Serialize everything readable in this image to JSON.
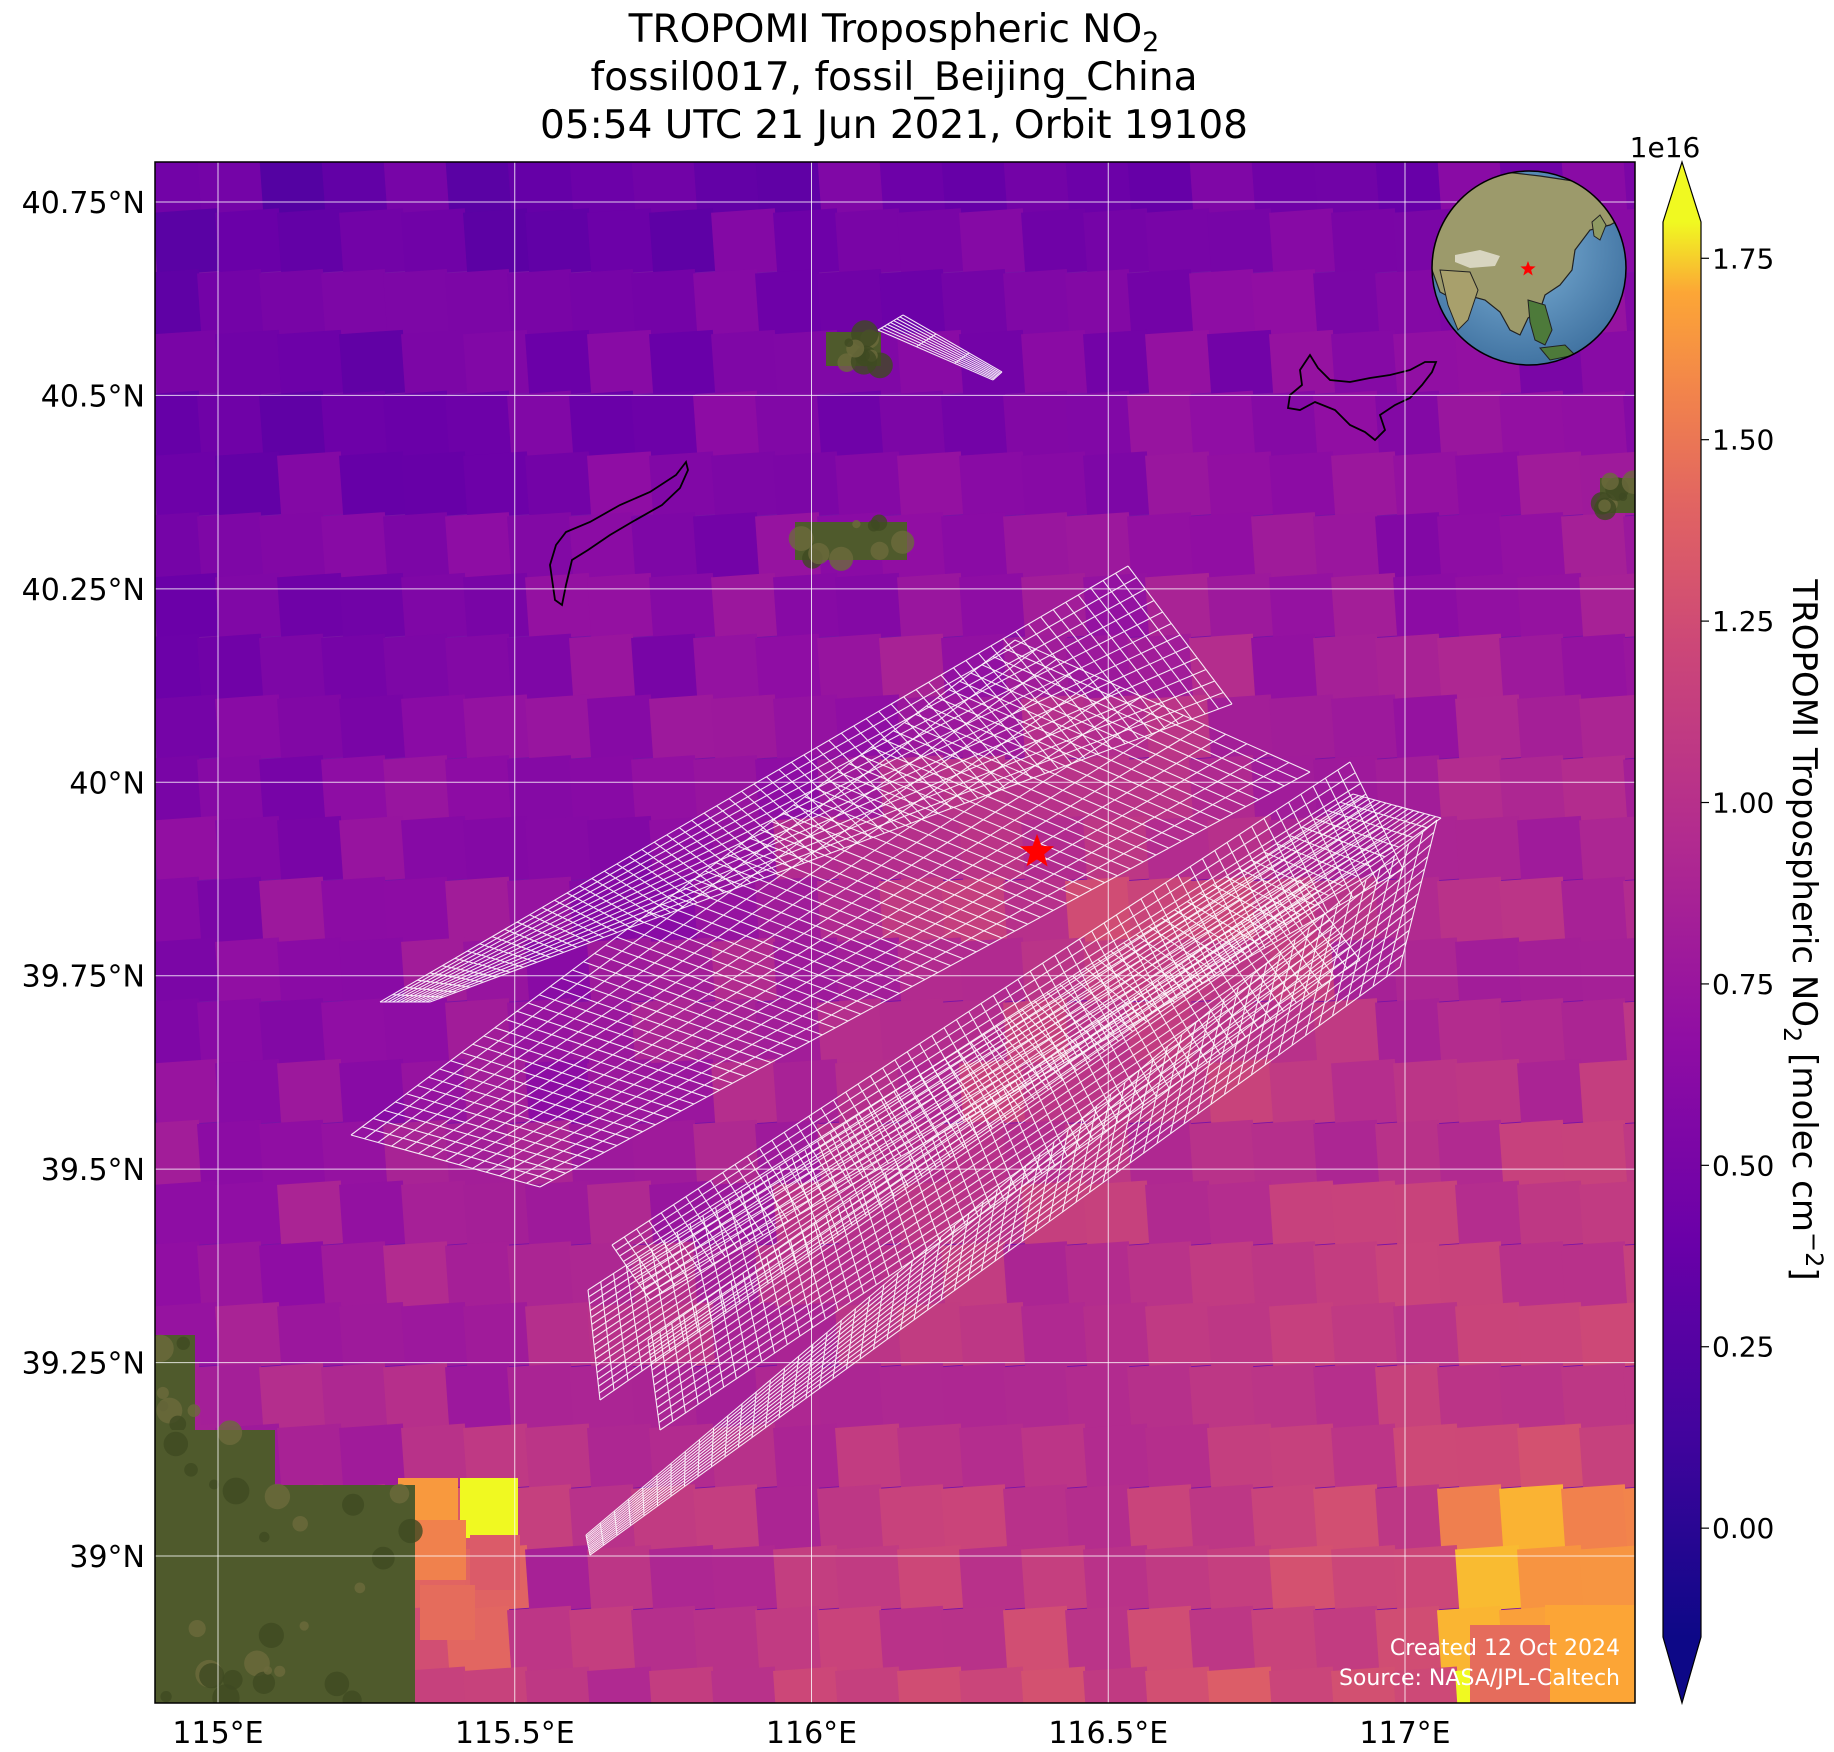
{
  "figure": {
    "title": {
      "line1_prefix": "TROPOMI Tropospheric NO",
      "line1_subscript": "2",
      "line2": "fossil0017, fossil_Beijing_China",
      "line3": "05:54 UTC 21 Jun 2021, Orbit 19108"
    },
    "map": {
      "lon_range": [
        114.9,
        117.4
      ],
      "lat_range": [
        38.8,
        40.8
      ],
      "lon_ticks": [
        {
          "value": 115.0,
          "label": "115°E"
        },
        {
          "value": 115.5,
          "label": "115.5°E"
        },
        {
          "value": 116.0,
          "label": "116°E"
        },
        {
          "value": 116.5,
          "label": "116.5°E"
        },
        {
          "value": 117.0,
          "label": "117°E"
        }
      ],
      "lat_ticks": [
        {
          "value": 40.75,
          "label": "40.75°N"
        },
        {
          "value": 40.5,
          "label": "40.5°N"
        },
        {
          "value": 40.25,
          "label": "40.25°N"
        },
        {
          "value": 40.0,
          "label": "40°N"
        },
        {
          "value": 39.75,
          "label": "39.75°N"
        },
        {
          "value": 39.5,
          "label": "39.5°N"
        },
        {
          "value": 39.25,
          "label": "39.25°N"
        },
        {
          "value": 39.0,
          "label": "39°N"
        }
      ],
      "gridlines": true,
      "target": {
        "name": "fossil_Beijing_China",
        "lon": 116.38,
        "lat": 39.91,
        "marker": "star",
        "color": "#ff0000"
      },
      "inset_globe": {
        "position": "top-right",
        "marker": "star",
        "marker_color": "#ff0000"
      },
      "overlay": "target-mode sounding footprint grids (white outlines)"
    },
    "colorbar": {
      "label_prefix": "TROPOMI Tropospheric NO",
      "label_subscript": "2",
      "label_suffix_1": " [molec cm",
      "label_superscript": "−2",
      "label_suffix_2": "]",
      "exponent_label": "1e16",
      "colormap": "plasma",
      "range": [
        -0.15,
        1.8
      ],
      "extend": "both",
      "ticks": [
        {
          "value": 0.0,
          "label": "0.00"
        },
        {
          "value": 0.25,
          "label": "0.25"
        },
        {
          "value": 0.5,
          "label": "0.50"
        },
        {
          "value": 0.75,
          "label": "0.75"
        },
        {
          "value": 1.0,
          "label": "1.00"
        },
        {
          "value": 1.25,
          "label": "1.25"
        },
        {
          "value": 1.5,
          "label": "1.50"
        },
        {
          "value": 1.75,
          "label": "1.75"
        }
      ]
    },
    "credits": {
      "created": "Created 12 Oct 2024",
      "source": "Source: NASA/JPL-Caltech"
    }
  }
}
